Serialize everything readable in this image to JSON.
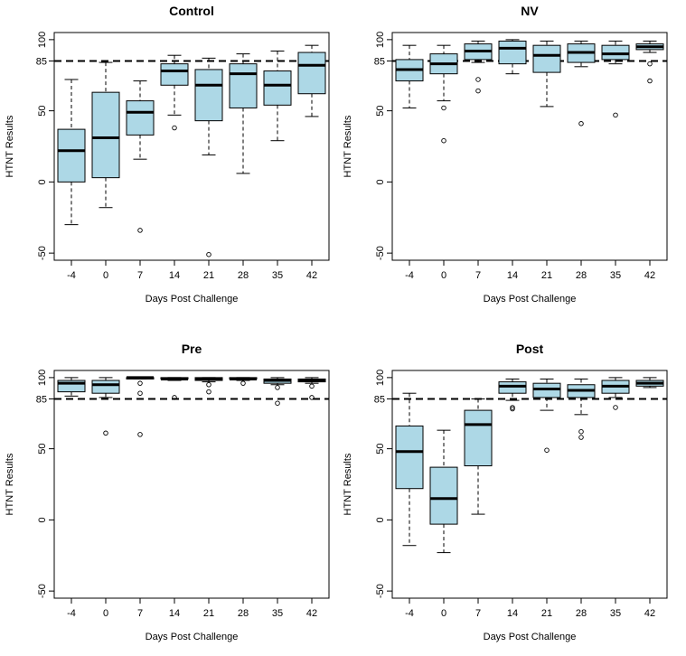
{
  "chart_data": [
    {
      "type": "boxplot",
      "title": "Control",
      "xlabel": "Days Post Challenge",
      "ylabel": "HTNT Results",
      "categories": [
        "-4",
        "0",
        "7",
        "14",
        "21",
        "28",
        "35",
        "42"
      ],
      "ylim": [
        -55,
        105
      ],
      "yticks": [
        -50,
        0,
        50,
        100
      ],
      "yticks_extra": [
        "85"
      ],
      "reference_line": 85,
      "boxes": [
        {
          "q1": 0,
          "median": 22,
          "q3": 37,
          "lower": -30,
          "upper": 72,
          "outliers": []
        },
        {
          "q1": 3,
          "median": 31,
          "q3": 63,
          "lower": -18,
          "upper": 84,
          "outliers": []
        },
        {
          "q1": 33,
          "median": 49,
          "q3": 57,
          "lower": 16,
          "upper": 71,
          "outliers": [
            -34
          ]
        },
        {
          "q1": 68,
          "median": 78,
          "q3": 83,
          "lower": 47,
          "upper": 89,
          "outliers": [
            38
          ]
        },
        {
          "q1": 43,
          "median": 68,
          "q3": 79,
          "lower": 19,
          "upper": 87,
          "outliers": [
            -51
          ]
        },
        {
          "q1": 52,
          "median": 76,
          "q3": 83,
          "lower": 6,
          "upper": 90,
          "outliers": []
        },
        {
          "q1": 54,
          "median": 68,
          "q3": 78,
          "lower": 29,
          "upper": 92,
          "outliers": []
        },
        {
          "q1": 62,
          "median": 82,
          "q3": 91,
          "lower": 46,
          "upper": 96,
          "outliers": []
        }
      ]
    },
    {
      "type": "boxplot",
      "title": "NV",
      "xlabel": "Days Post Challenge",
      "ylabel": "HTNT Results",
      "categories": [
        "-4",
        "0",
        "7",
        "14",
        "21",
        "28",
        "35",
        "42"
      ],
      "ylim": [
        -55,
        105
      ],
      "yticks": [
        -50,
        0,
        50,
        100
      ],
      "yticks_extra": [
        "85"
      ],
      "reference_line": 85,
      "boxes": [
        {
          "q1": 71,
          "median": 79,
          "q3": 86,
          "lower": 52,
          "upper": 96,
          "outliers": []
        },
        {
          "q1": 76,
          "median": 83,
          "q3": 90,
          "lower": 57,
          "upper": 96,
          "outliers": [
            52,
            29
          ]
        },
        {
          "q1": 86,
          "median": 92,
          "q3": 97,
          "lower": 84,
          "upper": 99,
          "outliers": [
            72,
            64
          ]
        },
        {
          "q1": 83,
          "median": 94,
          "q3": 99,
          "lower": 76,
          "upper": 100,
          "outliers": []
        },
        {
          "q1": 77,
          "median": 89,
          "q3": 96,
          "lower": 53,
          "upper": 99,
          "outliers": []
        },
        {
          "q1": 84,
          "median": 91,
          "q3": 97,
          "lower": 81,
          "upper": 99,
          "outliers": [
            41
          ]
        },
        {
          "q1": 86,
          "median": 90,
          "q3": 96,
          "lower": 83,
          "upper": 99,
          "outliers": [
            47
          ]
        },
        {
          "q1": 93,
          "median": 95,
          "q3": 97,
          "lower": 91,
          "upper": 99,
          "outliers": [
            83,
            71
          ]
        }
      ]
    },
    {
      "type": "boxplot",
      "title": "Pre",
      "xlabel": "Days Post Challenge",
      "ylabel": "HTNT Results",
      "categories": [
        "-4",
        "0",
        "7",
        "14",
        "21",
        "28",
        "35",
        "42"
      ],
      "ylim": [
        -55,
        105
      ],
      "yticks": [
        -50,
        0,
        50,
        100
      ],
      "yticks_extra": [
        "85"
      ],
      "reference_line": 85,
      "boxes": [
        {
          "q1": 90,
          "median": 96,
          "q3": 98,
          "lower": 87,
          "upper": 100,
          "outliers": []
        },
        {
          "q1": 89,
          "median": 95,
          "q3": 98,
          "lower": 86,
          "upper": 100,
          "outliers": [
            61
          ]
        },
        {
          "q1": 99,
          "median": 100,
          "q3": 100,
          "lower": 99,
          "upper": 100,
          "outliers": [
            96,
            89,
            60
          ]
        },
        {
          "q1": 99,
          "median": 99,
          "q3": 100,
          "lower": 98,
          "upper": 100,
          "outliers": [
            86
          ]
        },
        {
          "q1": 98,
          "median": 99,
          "q3": 100,
          "lower": 97,
          "upper": 100,
          "outliers": [
            95,
            90
          ]
        },
        {
          "q1": 99,
          "median": 99,
          "q3": 100,
          "lower": 98,
          "upper": 100,
          "outliers": [
            96
          ]
        },
        {
          "q1": 96,
          "median": 98,
          "q3": 99,
          "lower": 95,
          "upper": 100,
          "outliers": [
            93,
            82
          ]
        },
        {
          "q1": 97,
          "median": 98,
          "q3": 99,
          "lower": 96,
          "upper": 100,
          "outliers": [
            94,
            86
          ]
        }
      ]
    },
    {
      "type": "boxplot",
      "title": "Post",
      "xlabel": "Days Post Challenge",
      "ylabel": "HTNT Results",
      "categories": [
        "-4",
        "0",
        "7",
        "14",
        "21",
        "28",
        "35",
        "42"
      ],
      "ylim": [
        -55,
        105
      ],
      "yticks": [
        -50,
        0,
        50,
        100
      ],
      "yticks_extra": [
        "85"
      ],
      "reference_line": 85,
      "boxes": [
        {
          "q1": 22,
          "median": 48,
          "q3": 66,
          "lower": -18,
          "upper": 89,
          "outliers": []
        },
        {
          "q1": -3,
          "median": 15,
          "q3": 37,
          "lower": -23,
          "upper": 63,
          "outliers": []
        },
        {
          "q1": 38,
          "median": 67,
          "q3": 77,
          "lower": 4,
          "upper": 85,
          "outliers": []
        },
        {
          "q1": 89,
          "median": 94,
          "q3": 97,
          "lower": 84,
          "upper": 99,
          "outliers": [
            79,
            78
          ]
        },
        {
          "q1": 86,
          "median": 92,
          "q3": 96,
          "lower": 77,
          "upper": 99,
          "outliers": [
            49
          ]
        },
        {
          "q1": 86,
          "median": 91,
          "q3": 95,
          "lower": 74,
          "upper": 99,
          "outliers": [
            62,
            58
          ]
        },
        {
          "q1": 89,
          "median": 94,
          "q3": 98,
          "lower": 86,
          "upper": 100,
          "outliers": [
            79
          ]
        },
        {
          "q1": 94,
          "median": 96,
          "q3": 98,
          "lower": 93,
          "upper": 100,
          "outliers": []
        }
      ]
    }
  ],
  "colors": {
    "box_fill": "#add8e6",
    "stroke": "#000000",
    "background": "#ffffff"
  }
}
